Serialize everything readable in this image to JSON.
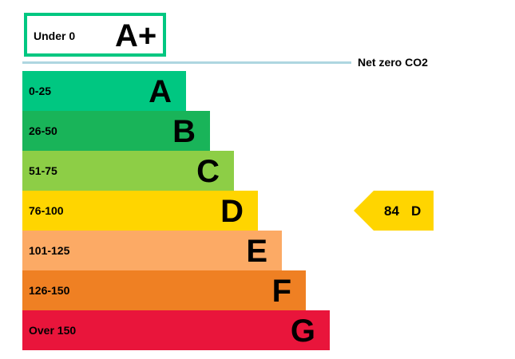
{
  "chart_data": {
    "type": "bar",
    "top_band": {
      "range": "Under 0",
      "letter": "A+",
      "color": "#00c781"
    },
    "net_zero_label": "Net zero CO2",
    "bands": [
      {
        "range": "0-25",
        "letter": "A",
        "color": "#00c781"
      },
      {
        "range": "26-50",
        "letter": "B",
        "color": "#19b459"
      },
      {
        "range": "51-75",
        "letter": "C",
        "color": "#8dce46"
      },
      {
        "range": "76-100",
        "letter": "D",
        "color": "#ffd500"
      },
      {
        "range": "101-125",
        "letter": "E",
        "color": "#fcaa65"
      },
      {
        "range": "126-150",
        "letter": "F",
        "color": "#ef8023"
      },
      {
        "range": "Over 150",
        "letter": "G",
        "color": "#e9153b"
      }
    ],
    "current": {
      "value": "84",
      "letter": "D",
      "color": "#ffd500"
    }
  }
}
